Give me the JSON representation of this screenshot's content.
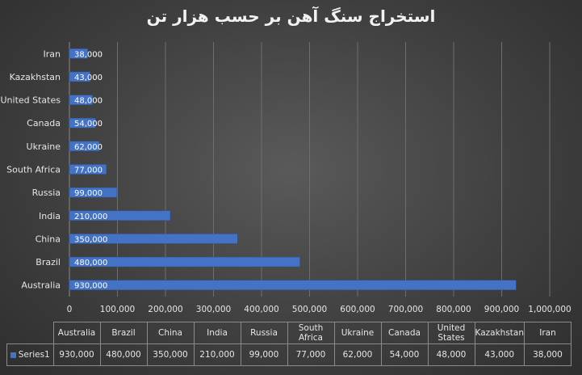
{
  "chart_data": {
    "type": "bar",
    "orientation": "horizontal",
    "title": "استخراج سنگ آهن بر حسب هزار تن",
    "categories": [
      "Australia",
      "Brazil",
      "China",
      "India",
      "Russia",
      "South Africa",
      "Ukraine",
      "Canada",
      "United States",
      "Kazakhstan",
      "Iran"
    ],
    "series": [
      {
        "name": "Series1",
        "values": [
          930000,
          480000,
          350000,
          210000,
          99000,
          77000,
          62000,
          54000,
          48000,
          43000,
          38000
        ],
        "labels": [
          "930,000",
          "480,000",
          "350,000",
          "210,000",
          "99,000",
          "77,000",
          "62,000",
          "54,000",
          "48,000",
          "43,000",
          "38,000"
        ]
      }
    ],
    "xlim": [
      0,
      1000000
    ],
    "xticks": [
      "0",
      "100,000",
      "200,000",
      "300,000",
      "400,000",
      "500,000",
      "600,000",
      "700,000",
      "800,000",
      "900,000",
      "1,000,000"
    ],
    "grid": true,
    "data_table": true,
    "bar_color": "#4472c4"
  }
}
